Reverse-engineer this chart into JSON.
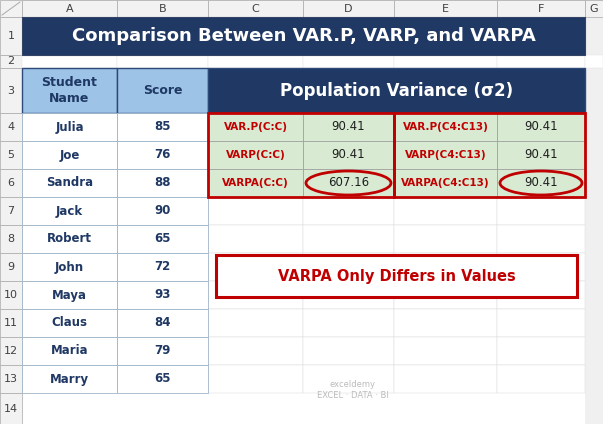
{
  "title": "Comparison Between VAR.P, VARP, and VARPA",
  "title_bg": "#1F3864",
  "title_color": "#FFFFFF",
  "col_headers": [
    "A",
    "B",
    "C",
    "D",
    "E",
    "F",
    "G"
  ],
  "row_numbers": [
    "1",
    "2",
    "3",
    "4",
    "5",
    "6",
    "7",
    "8",
    "9",
    "10",
    "11",
    "12",
    "13",
    "14"
  ],
  "students": [
    "Julia",
    "Joe",
    "Sandra",
    "Jack",
    "Robert",
    "John",
    "Maya",
    "Claus",
    "Maria",
    "Marry"
  ],
  "scores": [
    85,
    76,
    88,
    90,
    65,
    72,
    93,
    84,
    79,
    65
  ],
  "formulas_col": [
    "VAR.P(C:C)",
    "VARP(C:C)",
    "VARPA(C:C)"
  ],
  "values_col": [
    "90.41",
    "90.41",
    "607.16"
  ],
  "formulas_col2": [
    "VAR.P(C4:C13)",
    "VARP(C4:C13)",
    "VARPA(C4:C13)"
  ],
  "values_col2": [
    "90.41",
    "90.41",
    "90.41"
  ],
  "pop_var_header": "Population Variance (σ2)",
  "annotation": "VARPA Only Differs in Values",
  "header_bg": "#BDD7EE",
  "student_name_bg": "#9DC3E6",
  "score_bg": "#9DC3E6",
  "table_bg": "#FFFFFF",
  "formula_color": "#C00000",
  "value_highlight_bg": "#D9EAD3",
  "border_color": "#2E4A7A",
  "pop_var_bg": "#1F3864",
  "pop_var_color": "#FFFFFF",
  "annotation_color": "#C00000",
  "annotation_border": "#C00000",
  "annotation_bg": "#FFFFFF",
  "col_header_bg": "#F2F2F2",
  "row_num_bg": "#F2F2F2",
  "excel_bg": "#FFFFFF",
  "grid_color": "#CCCCCC",
  "student_text_color": "#1F3864",
  "score_text_color": "#1F3864",
  "data_text_color": "#1F3864"
}
